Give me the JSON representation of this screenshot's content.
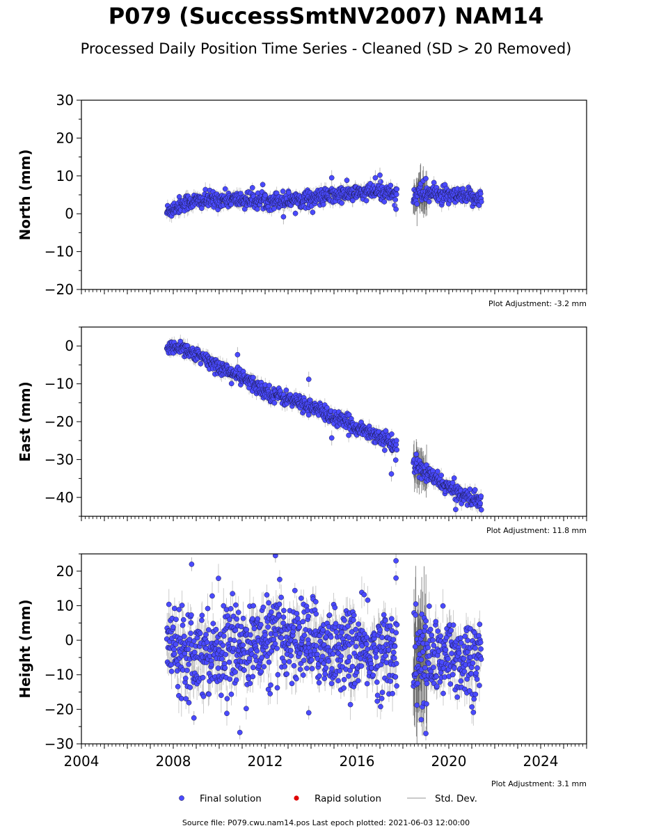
{
  "title": "P079 (SuccessSmtNV2007) NAM14",
  "subtitle": "Processed Daily Position Time Series - Cleaned (SD > 20 Removed)",
  "source": "Source file: P079.cwu.nam14.pos  Last epoch plotted: 2021-06-03 12:00:00",
  "legend": {
    "final_label": "Final solution",
    "rapid_label": "Rapid solution",
    "sd_label": "Std. Dev."
  },
  "colors": {
    "final": "#4a4aff",
    "rapid": "#e00000",
    "sd": "#b8b8b8",
    "sd_dark": "#555555"
  },
  "chart_data": [
    {
      "type": "scatter",
      "ylabel": "North (mm)",
      "adjustment": "Plot Adjustment: -3.2 mm",
      "xlim": [
        2004,
        2026
      ],
      "ylim": [
        -20,
        30
      ],
      "yticks": [
        -20,
        -10,
        0,
        10,
        20,
        30
      ],
      "yticks_labels": [
        "−20",
        "−10",
        "0",
        "10",
        "20",
        "30"
      ],
      "xticks": [
        2008,
        2012,
        2016,
        2020,
        2024
      ],
      "show_xtick_labels": false,
      "date_range": [
        2007.72,
        2021.42
      ],
      "gaps": [
        [
          2017.75,
          2018.45
        ]
      ],
      "series": [
        {
          "values": [
            [
              2007.72,
              0.5
            ],
            [
              2008.5,
              3.0
            ],
            [
              2010.0,
              3.8
            ],
            [
              2012.0,
              3.5
            ],
            [
              2014.0,
              4.0
            ],
            [
              2015.5,
              5.2
            ],
            [
              2017.0,
              5.8
            ],
            [
              2017.72,
              5.3
            ],
            [
              2018.45,
              5.0
            ],
            [
              2019.2,
              5.5
            ],
            [
              2020.0,
              4.5
            ],
            [
              2021.42,
              4.2
            ]
          ],
          "scatter_sd": 1.1,
          "outliers": [
            [
              2017.0,
              10.2
            ],
            [
              2016.8,
              9.5
            ],
            [
              2017.7,
              1.2
            ],
            [
              2019.0,
              9.3
            ],
            [
              2012.8,
              -0.8
            ],
            [
              2014.9,
              9.5
            ]
          ]
        }
      ]
    },
    {
      "type": "scatter",
      "ylabel": "East (mm)",
      "adjustment": "Plot Adjustment: 11.8 mm",
      "xlim": [
        2004,
        2026
      ],
      "ylim": [
        -45,
        5
      ],
      "yticks": [
        -40,
        -30,
        -20,
        -10,
        0
      ],
      "yticks_labels": [
        "−40",
        "−30",
        "−20",
        "−10",
        "0"
      ],
      "xticks": [
        2008,
        2012,
        2016,
        2020,
        2024
      ],
      "show_xtick_labels": false,
      "date_range": [
        2007.72,
        2021.42
      ],
      "gaps": [
        [
          2017.75,
          2018.45
        ]
      ],
      "series": [
        {
          "values": [
            [
              2007.72,
              -1.0
            ],
            [
              2008.3,
              0.0
            ],
            [
              2009.0,
              -2.5
            ],
            [
              2010.0,
              -5.5
            ],
            [
              2011.0,
              -8.5
            ],
            [
              2012.0,
              -12.0
            ],
            [
              2013.0,
              -14.0
            ],
            [
              2014.0,
              -16.0
            ],
            [
              2015.0,
              -19.0
            ],
            [
              2016.0,
              -21.5
            ],
            [
              2017.0,
              -24.0
            ],
            [
              2017.72,
              -26.5
            ],
            [
              2018.45,
              -31.5
            ],
            [
              2019.0,
              -33.5
            ],
            [
              2020.0,
              -37.5
            ],
            [
              2021.42,
              -41.5
            ]
          ],
          "scatter_sd": 1.0,
          "outliers": [
            [
              2010.8,
              -2.3
            ],
            [
              2013.9,
              -8.8
            ],
            [
              2017.5,
              -33.8
            ],
            [
              2014.9,
              -24.3
            ],
            [
              2020.3,
              -43.2
            ]
          ]
        }
      ]
    },
    {
      "type": "scatter",
      "ylabel": "Height (mm)",
      "adjustment": "Plot Adjustment: 3.1 mm",
      "xlim": [
        2004,
        2026
      ],
      "ylim": [
        -30,
        25
      ],
      "yticks": [
        -30,
        -20,
        -10,
        0,
        10,
        20
      ],
      "yticks_labels": [
        "−30",
        "−20",
        "−10",
        "0",
        "10",
        "20"
      ],
      "xticks": [
        2004,
        2008,
        2012,
        2016,
        2020,
        2024
      ],
      "xticks_labels": [
        "2004",
        "2008",
        "2012",
        "2016",
        "2020",
        "2024"
      ],
      "show_xtick_labels": true,
      "date_range": [
        2007.72,
        2021.42
      ],
      "gaps": [
        [
          2017.75,
          2018.45
        ]
      ],
      "series": [
        {
          "values": [
            [
              2007.72,
              0.0
            ],
            [
              2009.0,
              -3.0
            ],
            [
              2011.0,
              -2.0
            ],
            [
              2013.0,
              1.0
            ],
            [
              2015.0,
              -2.0
            ],
            [
              2017.0,
              -4.0
            ],
            [
              2017.72,
              -2.0
            ],
            [
              2018.45,
              -6.0
            ],
            [
              2020.0,
              -5.0
            ],
            [
              2021.42,
              -5.0
            ]
          ],
          "scatter_sd": 6.0,
          "outliers": [
            [
              2012.45,
              24.5
            ],
            [
              2017.7,
              23.0
            ],
            [
              2017.7,
              18.0
            ],
            [
              2008.8,
              22.0
            ],
            [
              2010.9,
              -26.7
            ],
            [
              2019.0,
              -27.0
            ],
            [
              2008.9,
              -22.5
            ],
            [
              2013.9,
              -21.0
            ],
            [
              2018.8,
              -23.0
            ]
          ]
        }
      ]
    }
  ]
}
